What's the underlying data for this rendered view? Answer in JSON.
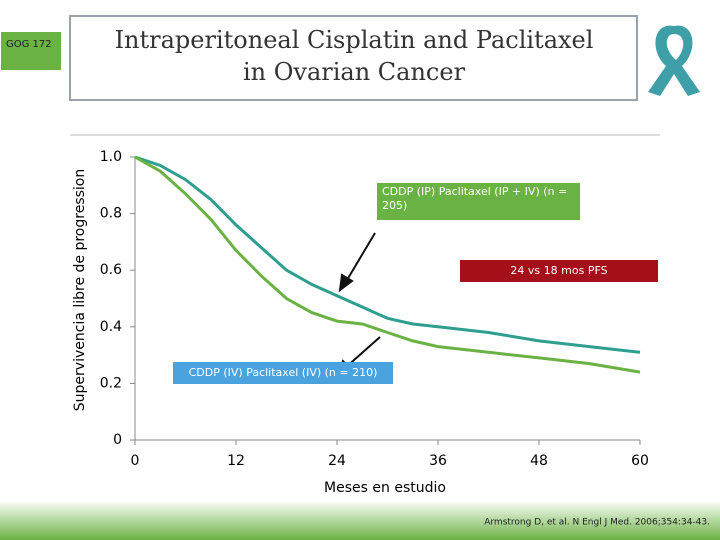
{
  "chart_data": {
    "type": "line",
    "badge": "GOG 172",
    "title": "Intraperitoneal Cisplatin and Paclitaxel in Ovarian Cancer",
    "y_label": "Supervivencia libre de progression",
    "x_label": "Meses en estudio",
    "annotations": [
      "24 vs 18 mos PFS"
    ],
    "source": "Armstrong D, et al. N Engl J Med. 2006;354:34-43.",
    "x": [
      0,
      3,
      6,
      9,
      12,
      15,
      18,
      21,
      24,
      27,
      30,
      33,
      36,
      42,
      48,
      54,
      60
    ],
    "series": [
      {
        "name": "CDDP (IP) Paclitaxel (IP + IV) (n = 205)",
        "color": "#2e9e8f",
        "values": [
          1.0,
          0.97,
          0.92,
          0.85,
          0.76,
          0.68,
          0.6,
          0.55,
          0.51,
          0.47,
          0.43,
          0.41,
          0.4,
          0.38,
          0.35,
          0.33,
          0.31
        ]
      },
      {
        "name": "CDDP (IV) Paclitaxel (IV) (n = 210)",
        "color": "#6bb244",
        "values": [
          1.0,
          0.95,
          0.87,
          0.78,
          0.67,
          0.58,
          0.5,
          0.45,
          0.42,
          0.41,
          0.38,
          0.35,
          0.33,
          0.31,
          0.29,
          0.27,
          0.24
        ]
      }
    ],
    "xlim": [
      0,
      60
    ],
    "ylim": [
      0,
      1
    ],
    "xticks": [
      0,
      12,
      24,
      36,
      48,
      60
    ],
    "yticks": [
      0,
      0.2,
      0.4,
      0.6,
      0.8,
      {
        "value": 1,
        "label": "1.0"
      }
    ]
  }
}
